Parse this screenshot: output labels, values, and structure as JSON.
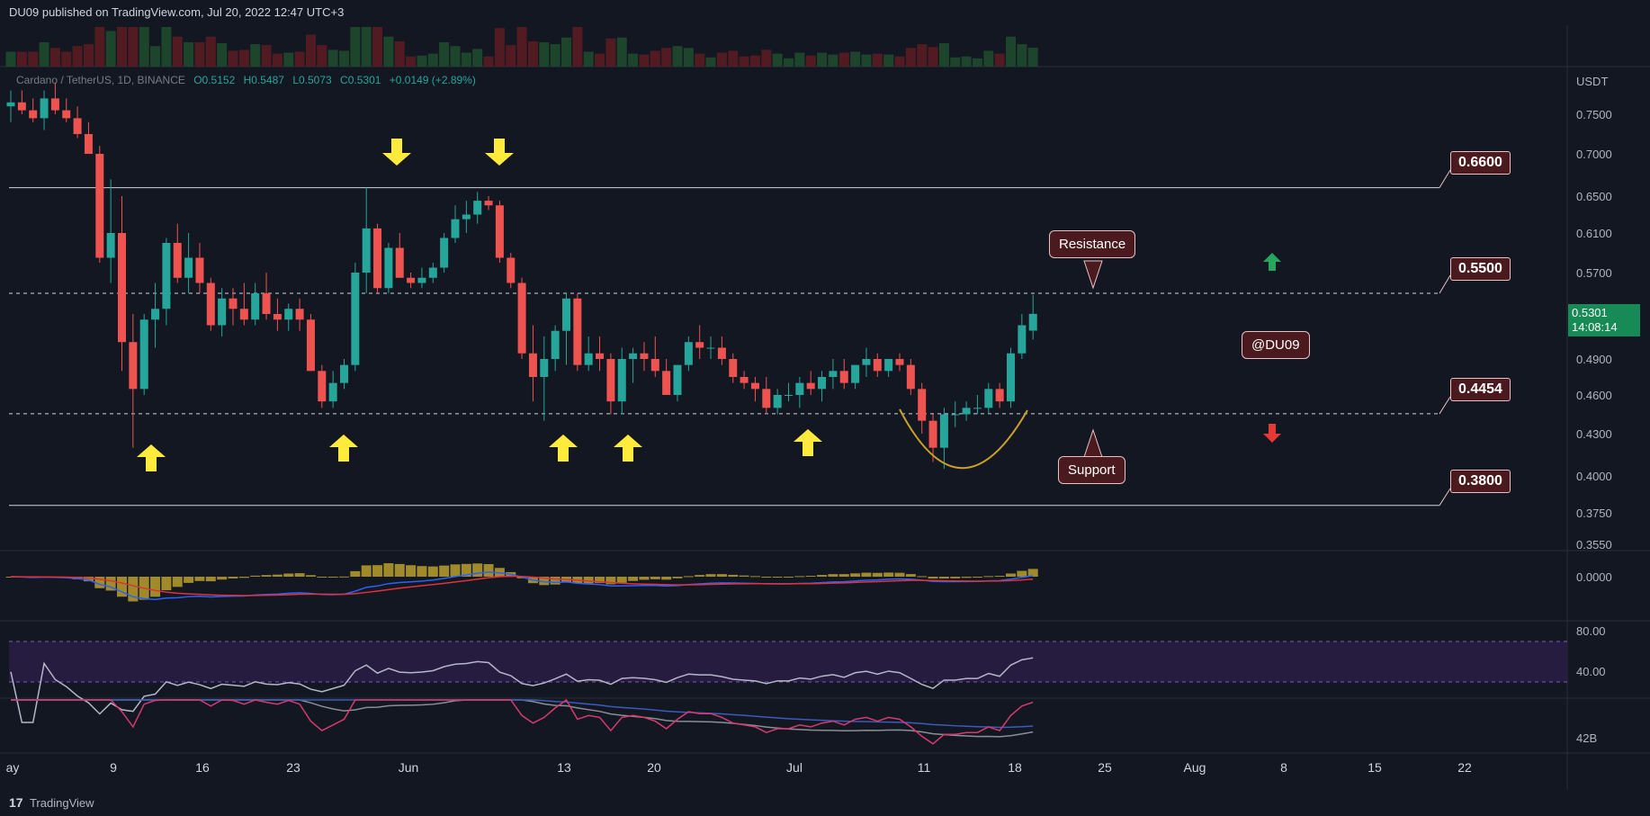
{
  "header": {
    "publisher_text": "DU09 published on TradingView.com, Jul 20, 2022 12:47 UTC+3"
  },
  "footer": {
    "brand": "TradingView",
    "logo_glyph": "17"
  },
  "legend": {
    "symbol": "Cardano / TetherUS, 1D, BINANCE",
    "open": "O0.5152",
    "high": "H0.5487",
    "low": "L0.5073",
    "close": "C0.5301",
    "change": "+0.0149 (+2.89%)"
  },
  "price_axis": {
    "unit": "USDT",
    "ticks": [
      "0.7500",
      "0.7000",
      "0.6500",
      "0.6100",
      "0.5700",
      "0.5300",
      "0.4900",
      "0.4600",
      "0.4300",
      "0.4000",
      "0.3750",
      "0.3550"
    ],
    "current_price": "0.5301",
    "countdown": "14:08:14"
  },
  "indicator_axis": {
    "macd": "0.0000",
    "rsi_hi": "80.00",
    "rsi_lo": "40.00",
    "bottom": "42B"
  },
  "time_axis": [
    "ay",
    "9",
    "16",
    "23",
    "Jun",
    "13",
    "20",
    "Jul",
    "11",
    "18",
    "25",
    "Aug",
    "8",
    "15",
    "22"
  ],
  "annotations": {
    "levels": [
      "0.6600",
      "0.5500",
      "0.4454",
      "0.3800"
    ],
    "resistance": "Resistance",
    "support": "Support",
    "watermark": "@DU09"
  },
  "colors": {
    "up": "#26a69a",
    "down": "#ef5350",
    "arrow": "#ffeb3b",
    "label_bg": "#4a1a1f"
  },
  "chart_data": {
    "type": "candlestick",
    "title": "Cardano / TetherUS, 1D, BINANCE",
    "ylabel": "USDT",
    "ylim": [
      0.355,
      0.77
    ],
    "levels": [
      0.66,
      0.55,
      0.4454,
      0.38
    ],
    "ohlc": [
      [
        0.76,
        0.78,
        0.74,
        0.765
      ],
      [
        0.765,
        0.78,
        0.75,
        0.755
      ],
      [
        0.755,
        0.77,
        0.74,
        0.745
      ],
      [
        0.745,
        0.78,
        0.73,
        0.77
      ],
      [
        0.77,
        0.79,
        0.75,
        0.755
      ],
      [
        0.755,
        0.77,
        0.74,
        0.745
      ],
      [
        0.745,
        0.76,
        0.72,
        0.725
      ],
      [
        0.725,
        0.74,
        0.7,
        0.7
      ],
      [
        0.7,
        0.71,
        0.58,
        0.585
      ],
      [
        0.585,
        0.67,
        0.56,
        0.61
      ],
      [
        0.61,
        0.65,
        0.48,
        0.505
      ],
      [
        0.505,
        0.53,
        0.42,
        0.465
      ],
      [
        0.465,
        0.53,
        0.46,
        0.525
      ],
      [
        0.525,
        0.56,
        0.5,
        0.535
      ],
      [
        0.535,
        0.605,
        0.52,
        0.6
      ],
      [
        0.6,
        0.62,
        0.56,
        0.565
      ],
      [
        0.565,
        0.61,
        0.55,
        0.585
      ],
      [
        0.585,
        0.6,
        0.55,
        0.56
      ],
      [
        0.56,
        0.565,
        0.515,
        0.52
      ],
      [
        0.52,
        0.555,
        0.51,
        0.545
      ],
      [
        0.545,
        0.555,
        0.52,
        0.535
      ],
      [
        0.535,
        0.56,
        0.52,
        0.525
      ],
      [
        0.525,
        0.56,
        0.52,
        0.55
      ],
      [
        0.55,
        0.57,
        0.525,
        0.53
      ],
      [
        0.53,
        0.545,
        0.515,
        0.525
      ],
      [
        0.525,
        0.54,
        0.515,
        0.535
      ],
      [
        0.535,
        0.545,
        0.515,
        0.525
      ],
      [
        0.525,
        0.53,
        0.48,
        0.48
      ],
      [
        0.48,
        0.485,
        0.45,
        0.455
      ],
      [
        0.455,
        0.48,
        0.45,
        0.47
      ],
      [
        0.47,
        0.49,
        0.465,
        0.485
      ],
      [
        0.485,
        0.58,
        0.48,
        0.57
      ],
      [
        0.57,
        0.66,
        0.55,
        0.615
      ],
      [
        0.615,
        0.62,
        0.55,
        0.555
      ],
      [
        0.555,
        0.6,
        0.55,
        0.595
      ],
      [
        0.595,
        0.61,
        0.565,
        0.565
      ],
      [
        0.565,
        0.57,
        0.555,
        0.56
      ],
      [
        0.56,
        0.575,
        0.555,
        0.565
      ],
      [
        0.565,
        0.58,
        0.56,
        0.575
      ],
      [
        0.575,
        0.61,
        0.57,
        0.605
      ],
      [
        0.605,
        0.64,
        0.6,
        0.625
      ],
      [
        0.625,
        0.645,
        0.61,
        0.63
      ],
      [
        0.63,
        0.655,
        0.62,
        0.645
      ],
      [
        0.645,
        0.65,
        0.635,
        0.64
      ],
      [
        0.64,
        0.645,
        0.58,
        0.585
      ],
      [
        0.585,
        0.59,
        0.555,
        0.56
      ],
      [
        0.56,
        0.565,
        0.49,
        0.495
      ],
      [
        0.495,
        0.52,
        0.455,
        0.475
      ],
      [
        0.475,
        0.51,
        0.44,
        0.49
      ],
      [
        0.49,
        0.52,
        0.48,
        0.515
      ],
      [
        0.515,
        0.55,
        0.485,
        0.545
      ],
      [
        0.545,
        0.55,
        0.48,
        0.485
      ],
      [
        0.485,
        0.51,
        0.48,
        0.495
      ],
      [
        0.495,
        0.51,
        0.48,
        0.49
      ],
      [
        0.49,
        0.495,
        0.445,
        0.455
      ],
      [
        0.455,
        0.5,
        0.445,
        0.49
      ],
      [
        0.49,
        0.5,
        0.47,
        0.495
      ],
      [
        0.495,
        0.505,
        0.48,
        0.49
      ],
      [
        0.49,
        0.51,
        0.475,
        0.48
      ],
      [
        0.48,
        0.49,
        0.46,
        0.46
      ],
      [
        0.46,
        0.485,
        0.455,
        0.485
      ],
      [
        0.485,
        0.51,
        0.48,
        0.505
      ],
      [
        0.505,
        0.52,
        0.49,
        0.5
      ],
      [
        0.5,
        0.51,
        0.49,
        0.5
      ],
      [
        0.5,
        0.51,
        0.485,
        0.49
      ],
      [
        0.49,
        0.495,
        0.47,
        0.475
      ],
      [
        0.475,
        0.48,
        0.465,
        0.47
      ],
      [
        0.47,
        0.475,
        0.455,
        0.465
      ],
      [
        0.465,
        0.475,
        0.445,
        0.45
      ],
      [
        0.45,
        0.465,
        0.445,
        0.46
      ],
      [
        0.46,
        0.47,
        0.455,
        0.46
      ],
      [
        0.46,
        0.475,
        0.45,
        0.47
      ],
      [
        0.47,
        0.48,
        0.46,
        0.465
      ],
      [
        0.465,
        0.48,
        0.455,
        0.475
      ],
      [
        0.475,
        0.49,
        0.465,
        0.48
      ],
      [
        0.48,
        0.49,
        0.465,
        0.47
      ],
      [
        0.47,
        0.485,
        0.465,
        0.485
      ],
      [
        0.485,
        0.5,
        0.475,
        0.49
      ],
      [
        0.49,
        0.495,
        0.475,
        0.48
      ],
      [
        0.48,
        0.49,
        0.475,
        0.49
      ],
      [
        0.49,
        0.495,
        0.48,
        0.485
      ],
      [
        0.485,
        0.49,
        0.46,
        0.465
      ],
      [
        0.465,
        0.47,
        0.43,
        0.44
      ],
      [
        0.44,
        0.445,
        0.41,
        0.42
      ],
      [
        0.42,
        0.45,
        0.405,
        0.445
      ],
      [
        0.445,
        0.455,
        0.435,
        0.445
      ],
      [
        0.445,
        0.455,
        0.44,
        0.45
      ],
      [
        0.45,
        0.46,
        0.445,
        0.45
      ],
      [
        0.45,
        0.47,
        0.445,
        0.465
      ],
      [
        0.465,
        0.47,
        0.45,
        0.455
      ],
      [
        0.455,
        0.5,
        0.45,
        0.495
      ],
      [
        0.495,
        0.53,
        0.49,
        0.52
      ],
      [
        0.5152,
        0.5487,
        0.5073,
        0.5301
      ]
    ]
  }
}
